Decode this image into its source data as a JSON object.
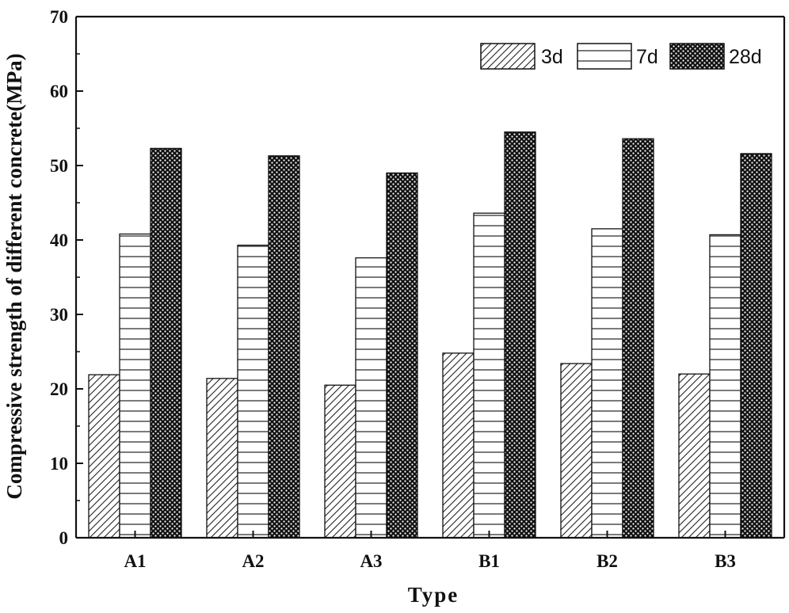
{
  "chart_data": {
    "type": "bar",
    "title": "",
    "xlabel": "Type",
    "ylabel": "Compressive strength of different concrete(MPa)",
    "categories": [
      "A1",
      "A2",
      "A3",
      "B1",
      "B2",
      "B3"
    ],
    "series": [
      {
        "name": "3d",
        "pattern": "diagonal-hatch",
        "values": [
          21.9,
          21.4,
          20.5,
          24.8,
          23.4,
          22.0
        ]
      },
      {
        "name": "7d",
        "pattern": "horizontal-lines",
        "values": [
          40.8,
          39.3,
          37.6,
          43.6,
          41.5,
          40.7
        ]
      },
      {
        "name": "28d",
        "pattern": "dense-crosshatch",
        "values": [
          52.3,
          51.3,
          49.0,
          54.5,
          53.6,
          51.6
        ]
      }
    ],
    "ylim": [
      0,
      70
    ],
    "yticks": [
      0,
      10,
      20,
      30,
      40,
      50,
      60,
      70
    ],
    "legend_position": "top-right",
    "grid": false
  }
}
